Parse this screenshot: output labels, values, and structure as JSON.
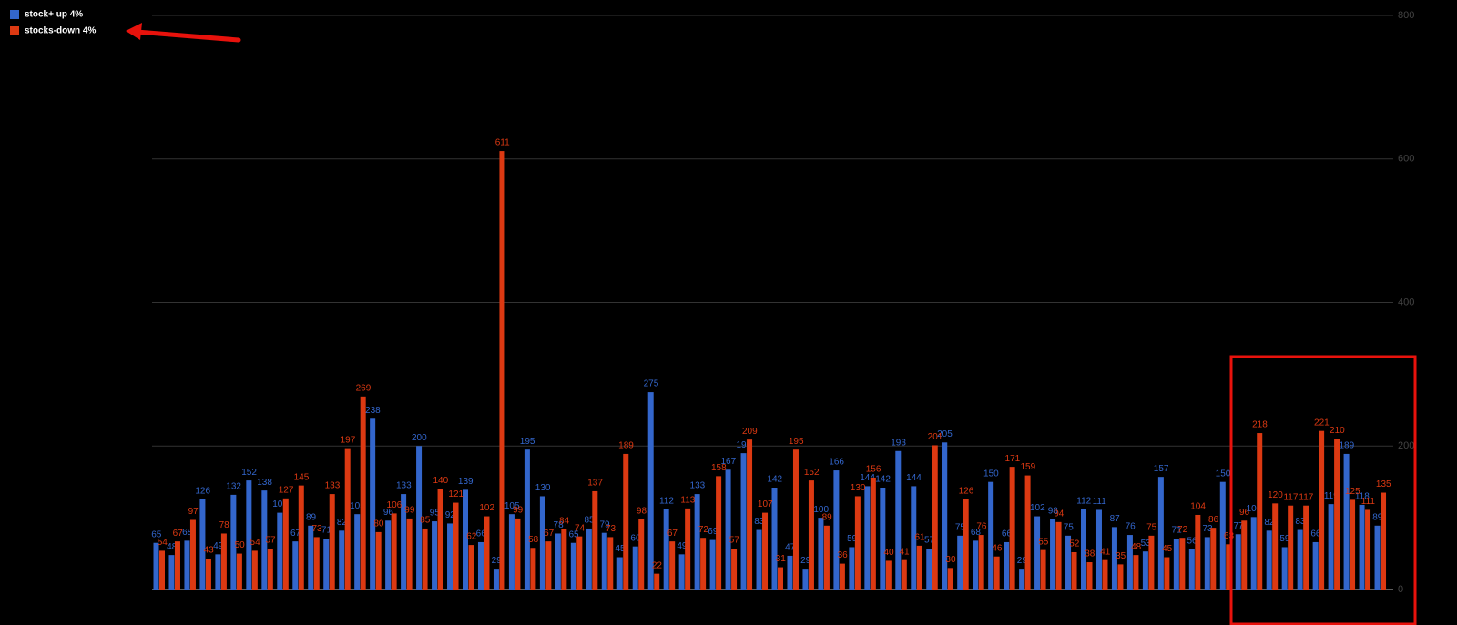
{
  "chart_data": {
    "type": "bar",
    "series": [
      {
        "name": "stock+ up 4%",
        "color": "#3366cc",
        "values": [
          65,
          48,
          68,
          126,
          49,
          132,
          152,
          138,
          107,
          67,
          89,
          71,
          82,
          105,
          238,
          96,
          133,
          200,
          95,
          92,
          139,
          66,
          29,
          105,
          195,
          130,
          78,
          65,
          85,
          79,
          45,
          60,
          275,
          112,
          49,
          133,
          69,
          167,
          190,
          83,
          142,
          47,
          29,
          100,
          166,
          59,
          144,
          142,
          193,
          144,
          57,
          205,
          75,
          68,
          150,
          66,
          29,
          102,
          98,
          75,
          112,
          111,
          87,
          76,
          53,
          157,
          71,
          56,
          73,
          150,
          77,
          101,
          82,
          59,
          83,
          66,
          119,
          189,
          118,
          89
        ]
      },
      {
        "name": "stocks-down 4%",
        "color": "#dc3912",
        "values": [
          54,
          67,
          97,
          43,
          78,
          50,
          54,
          57,
          127,
          145,
          73,
          133,
          197,
          269,
          80,
          106,
          99,
          85,
          140,
          121,
          62,
          102,
          611,
          99,
          58,
          67,
          84,
          74,
          137,
          73,
          189,
          98,
          22,
          67,
          113,
          72,
          158,
          57,
          209,
          107,
          31,
          195,
          152,
          89,
          36,
          130,
          156,
          40,
          41,
          61,
          201,
          30,
          126,
          76,
          46,
          171,
          159,
          55,
          94,
          52,
          38,
          41,
          35,
          48,
          75,
          45,
          72,
          104,
          86,
          63,
          96,
          218,
          120,
          117,
          117,
          221,
          210,
          125,
          111,
          135
        ]
      }
    ],
    "ylim": [
      0,
      800
    ],
    "yticks": [
      0,
      200,
      400,
      600,
      800
    ],
    "grid": true,
    "legend": "top-left"
  }
}
